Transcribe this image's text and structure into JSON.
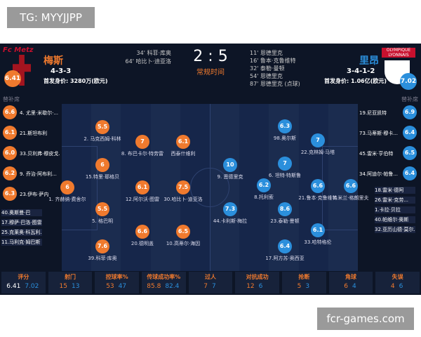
{
  "watermark": "TG: MYYJJPP",
  "footer": "fcr-games.com",
  "home": {
    "logo": "Fc Metz",
    "name": "梅斯",
    "formation": "4-3-3",
    "value": "首发身价: 3280万(欧元)",
    "rating": "6.41"
  },
  "away": {
    "logo": "OLYMPIQUE LYONNAIS",
    "name": "里昂",
    "formation": "3-4-1-2",
    "value": "首发身价: 1.06亿(欧元)",
    "rating": "7.02"
  },
  "score": "2 : 5",
  "status": "常规时间",
  "home_goals": [
    "34' 科菲·库奥",
    "64' 哈比卜·迪亚洛"
  ],
  "away_goals": [
    "11' 恩德里克",
    "16' 鲁本·克鲁维特",
    "32' 泰勒·曼顿",
    "54' 恩德里克",
    "87' 恩德里克 (点球)"
  ],
  "bench_label": "替补席",
  "home_subs": [
    [
      "6.6",
      "4. 尤里·米歇尔·..."
    ],
    [
      "6.1",
      "21.斯坦布利"
    ],
    [
      "6.0",
      "33.贝利弗·穆皮戈..."
    ],
    [
      "6.2",
      "9. 乔治·阿布利..."
    ],
    [
      "6.3",
      "23.伊布·萨内"
    ],
    [
      null,
      "40.奥斯曼·巴"
    ],
    [
      null,
      "17.穆萨·巴洛·图雷"
    ],
    [
      null,
      "25.克莱奥·科瓦利..."
    ],
    [
      null,
      "11.马利克·姆巴斯"
    ]
  ],
  "away_subs": [
    [
      "6.9",
      "19.尼亚凯特"
    ],
    [
      "6.4",
      "73.马蒂斯·穆卡..."
    ],
    [
      "6.5",
      "45.雷米·亨伯特"
    ],
    [
      "6.4",
      "34.阿迪尔·帕鲁..."
    ],
    [
      null,
      "18.雷米·德阿"
    ],
    [
      null,
      "26.雷米·克劳..."
    ],
    [
      null,
      "1.卡拉·贝拉"
    ],
    [
      null,
      "40.帕维尔·奥斯"
    ],
    [
      null,
      "32.亚历山德·莫尔..."
    ]
  ],
  "home_players": [
    [
      "6",
      "1. 齐赫纳·费舍尔"
    ],
    [
      "5.5",
      "2. 马克西姆·科林"
    ],
    [
      "6",
      "15.特里·耶格贝"
    ],
    [
      "5.5",
      "5. 格巴明"
    ],
    [
      "7.6",
      "39.科菲·库奥"
    ],
    [
      "7",
      "8. 布巴卡尔·特劳雷"
    ],
    [
      "6.1",
      "12.阿尔沃·图雷"
    ],
    [
      "6.6",
      "20.德明盖"
    ],
    [
      "6.1",
      "西泰什维利"
    ],
    [
      "7.5",
      "30.哈比卜·迪亚洛"
    ],
    [
      "6.5",
      "10.高蒂尔·海因"
    ]
  ],
  "away_players": [
    [
      "6.6",
      "3.米兰·格朗里夫"
    ],
    [
      "7",
      "22.克林姆·马塔"
    ],
    [
      "6.6",
      "21.鲁本·克鲁维特"
    ],
    [
      "6.1",
      "33.哈特格伦"
    ],
    [
      "6.3",
      "98.奥尔斯"
    ],
    [
      "7",
      "6. 坦特·特斯鲁"
    ],
    [
      "8.6",
      "23.泰勒·曼顿"
    ],
    [
      "6.4",
      "17.阿方苏·奥西亚"
    ],
    [
      "6.2",
      "8.托利索"
    ],
    [
      "10",
      "9. 恩德里克"
    ],
    [
      "7.3",
      "44.卡利斯·梅拉"
    ]
  ],
  "stats": [
    [
      "评分",
      "6.41",
      "7.02"
    ],
    [
      "射门",
      "15",
      "13"
    ],
    [
      "控球率%",
      "53",
      "47"
    ],
    [
      "传球成功率%",
      "85.8",
      "82.4"
    ],
    [
      "过人",
      "7",
      "7"
    ],
    [
      "对抗成功",
      "12",
      "6"
    ],
    [
      "抢断",
      "5",
      "3"
    ],
    [
      "角球",
      "6",
      "4"
    ],
    [
      "失误",
      "4",
      "6"
    ]
  ]
}
